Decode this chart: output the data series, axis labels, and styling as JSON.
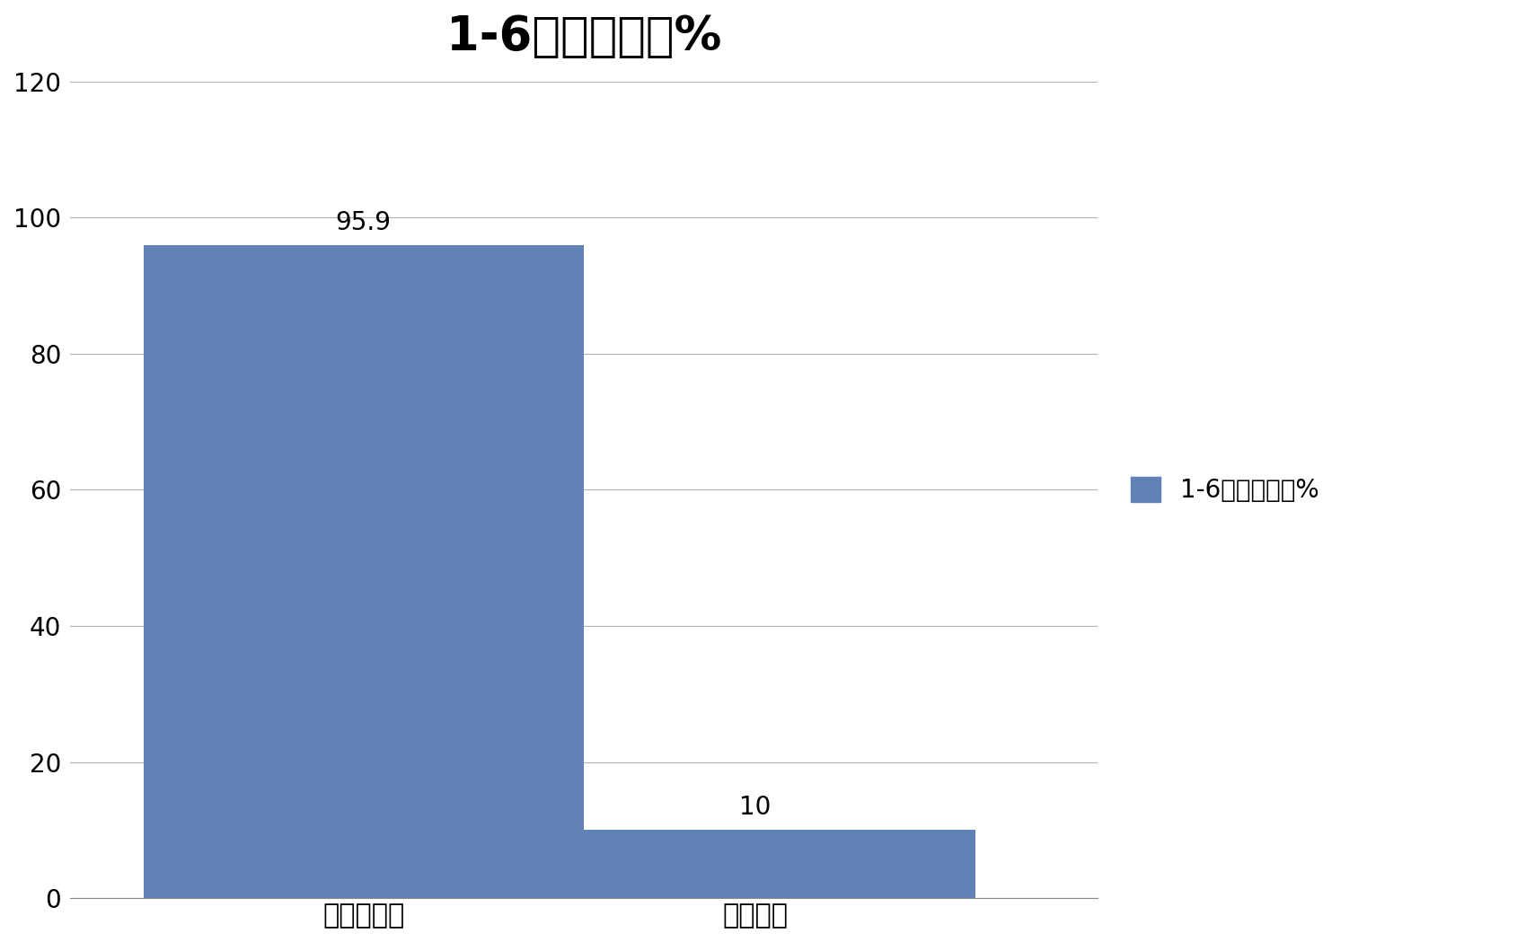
{
  "title": "1-6月累计同比%",
  "categories": [
    "新能源轻卡",
    "轻卡大盘"
  ],
  "values": [
    95.9,
    10
  ],
  "bar_color": "#6082B6",
  "ylim": [
    0,
    120
  ],
  "yticks": [
    0,
    20,
    40,
    60,
    80,
    100,
    120
  ],
  "legend_label": "1-6月累计同比%",
  "title_fontsize": 38,
  "tick_fontsize": 20,
  "label_fontsize": 22,
  "annotation_fontsize": 20,
  "background_color": "#ffffff",
  "grid_color": "#b0b0b0",
  "bar_width": 0.45
}
